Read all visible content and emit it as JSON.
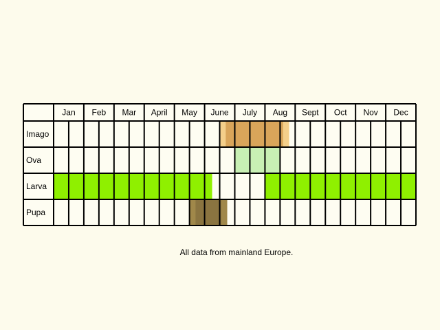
{
  "months": [
    "Jan",
    "Feb",
    "Mar",
    "April",
    "May",
    "June",
    "July",
    "Aug",
    "Sept",
    "Oct",
    "Nov",
    "Dec"
  ],
  "note": "All data from mainland Europe.",
  "colors": {
    "background": "#fdfbec",
    "grid": "#000000",
    "cell": "#fefdf2"
  },
  "rows": [
    {
      "label": "Imago",
      "color": "#d9a55a",
      "edge_color": "#f4cf8a",
      "periods": [
        {
          "start_month": 5.5,
          "end_month": 7.8
        }
      ]
    },
    {
      "label": "Ova",
      "color": "#c8f0b4",
      "edge_color": "#c8f0b4",
      "periods": [
        {
          "start_month": 6.0,
          "end_month": 7.5
        }
      ]
    },
    {
      "label": "Larva",
      "color": "#8ff000",
      "edge_color": "#8ff000",
      "periods": [
        {
          "start_month": 0.0,
          "end_month": 5.25
        },
        {
          "start_month": 7.0,
          "end_month": 12.0
        }
      ]
    },
    {
      "label": "Pupa",
      "color": "#8a7440",
      "edge_color": "#a0884a",
      "periods": [
        {
          "start_month": 4.5,
          "end_month": 5.75
        }
      ]
    }
  ]
}
